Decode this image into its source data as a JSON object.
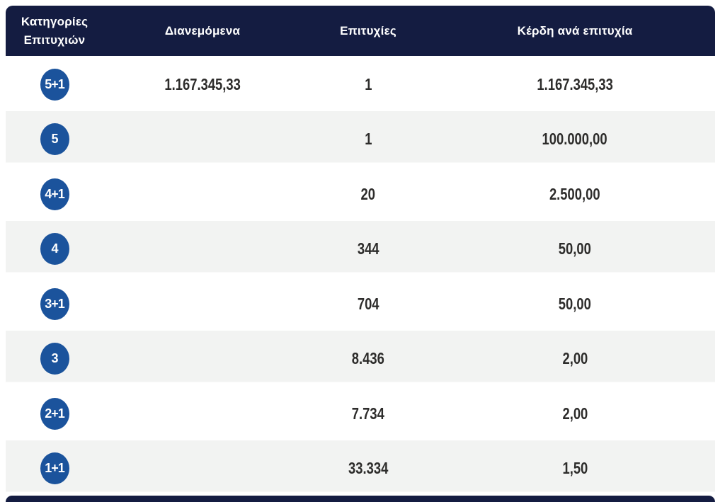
{
  "table": {
    "headers": {
      "category_line1": "Κατηγορίες",
      "category_line2": "Επιτυχιών",
      "distributed": "Διανεμόμενα",
      "wins": "Επιτυχίες",
      "prize_per_win": "Κέρδη ανά επιτυχία"
    },
    "rows": [
      {
        "category": "5+1",
        "distributed": "1.167.345,33",
        "wins": "1",
        "prize": "1.167.345,33"
      },
      {
        "category": "5",
        "distributed": "",
        "wins": "1",
        "prize": "100.000,00"
      },
      {
        "category": "4+1",
        "distributed": "",
        "wins": "20",
        "prize": "2.500,00"
      },
      {
        "category": "4",
        "distributed": "",
        "wins": "344",
        "prize": "50,00"
      },
      {
        "category": "3+1",
        "distributed": "",
        "wins": "704",
        "prize": "50,00"
      },
      {
        "category": "3",
        "distributed": "",
        "wins": "8.436",
        "prize": "2,00"
      },
      {
        "category": "2+1",
        "distributed": "",
        "wins": "7.734",
        "prize": "2,00"
      },
      {
        "category": "1+1",
        "distributed": "",
        "wins": "33.334",
        "prize": "1,50"
      }
    ],
    "colors": {
      "header_bg": "#141c41",
      "badge_bg": "#1b539c",
      "row_alt_bg": "#f2f3f2",
      "text": "#2d2c2b",
      "header_text": "#ffffff"
    }
  }
}
